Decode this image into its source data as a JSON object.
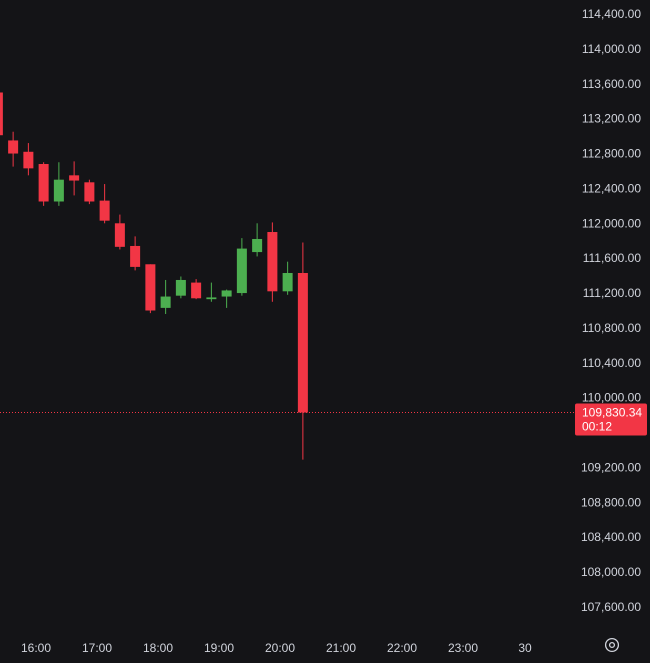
{
  "chart_data": {
    "type": "candlestick",
    "x_axis_ticks": [
      "16:00",
      "17:00",
      "18:00",
      "19:00",
      "20:00",
      "21:00",
      "22:00",
      "23:00",
      "30"
    ],
    "y_axis_ticks": [
      "114,400.00",
      "114,000.00",
      "113,600.00",
      "113,200.00",
      "112,800.00",
      "112,400.00",
      "112,000.00",
      "111,600.00",
      "111,200.00",
      "110,800.00",
      "110,400.00",
      "110,000.00",
      "109,200.00",
      "108,800.00",
      "108,400.00",
      "108,000.00",
      "107,600.00"
    ],
    "ylim": [
      107300,
      114600
    ],
    "interval_minutes": 15,
    "grid": false,
    "candles": [
      {
        "time": "15:15",
        "open": 113500,
        "high": 113560,
        "low": 112950,
        "close": 113010
      },
      {
        "time": "15:30",
        "open": 112950,
        "high": 113050,
        "low": 112650,
        "close": 112800
      },
      {
        "time": "15:45",
        "open": 112820,
        "high": 112920,
        "low": 112550,
        "close": 112630
      },
      {
        "time": "16:00",
        "open": 112680,
        "high": 112700,
        "low": 112200,
        "close": 112250
      },
      {
        "time": "16:15",
        "open": 112250,
        "high": 112700,
        "low": 112200,
        "close": 112500
      },
      {
        "time": "16:30",
        "open": 112550,
        "high": 112710,
        "low": 112320,
        "close": 112490
      },
      {
        "time": "16:45",
        "open": 112470,
        "high": 112500,
        "low": 112220,
        "close": 112250
      },
      {
        "time": "17:00",
        "open": 112260,
        "high": 112450,
        "low": 112000,
        "close": 112030
      },
      {
        "time": "17:15",
        "open": 112000,
        "high": 112100,
        "low": 111700,
        "close": 111730
      },
      {
        "time": "17:30",
        "open": 111740,
        "high": 111850,
        "low": 111460,
        "close": 111500
      },
      {
        "time": "17:45",
        "open": 111530,
        "high": 111530,
        "low": 110970,
        "close": 111000
      },
      {
        "time": "18:00",
        "open": 111030,
        "high": 111350,
        "low": 110960,
        "close": 111160
      },
      {
        "time": "18:15",
        "open": 111170,
        "high": 111390,
        "low": 111140,
        "close": 111350
      },
      {
        "time": "18:30",
        "open": 111320,
        "high": 111360,
        "low": 111130,
        "close": 111140
      },
      {
        "time": "18:45",
        "open": 111130,
        "high": 111320,
        "low": 111100,
        "close": 111150
      },
      {
        "time": "19:00",
        "open": 111160,
        "high": 111240,
        "low": 111030,
        "close": 111230
      },
      {
        "time": "19:15",
        "open": 111200,
        "high": 111830,
        "low": 111170,
        "close": 111710
      },
      {
        "time": "19:30",
        "open": 111670,
        "high": 112000,
        "low": 111620,
        "close": 111820
      },
      {
        "time": "19:45",
        "open": 111900,
        "high": 112010,
        "low": 111100,
        "close": 111220
      },
      {
        "time": "20:00",
        "open": 111220,
        "high": 111560,
        "low": 111180,
        "close": 111430
      },
      {
        "time": "20:15",
        "open": 111430,
        "high": 111780,
        "low": 109290,
        "close": 109830.34
      }
    ],
    "last_price": "109,830.34",
    "countdown": "00:12",
    "colors": {
      "background": "#141417",
      "up": "#4caf50",
      "down": "#f23645",
      "axis_text": "#d1d4dc",
      "price_line": "#f23645"
    }
  },
  "icons": {
    "settings": "settings-gear-icon"
  }
}
